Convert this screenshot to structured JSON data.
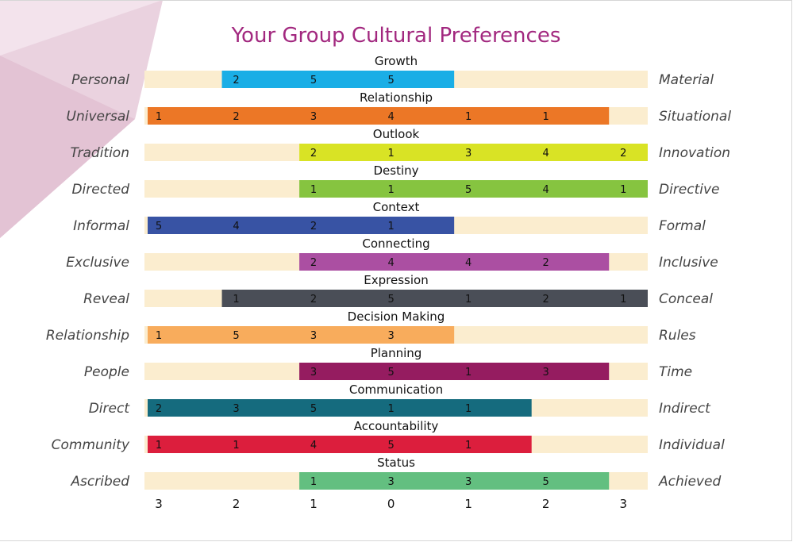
{
  "chart_data": {
    "type": "bar",
    "title": "Your Group Cultural Preferences",
    "x_ticks": [
      "3",
      "2",
      "1",
      "0",
      "1",
      "2",
      "3"
    ],
    "rows": [
      {
        "title": "Growth",
        "left": "Personal",
        "right": "Material",
        "color": "#1aaee6",
        "start": 1,
        "counts": [
          "2",
          "5",
          "5"
        ]
      },
      {
        "title": "Relationship",
        "left": "Universal",
        "right": "Situational",
        "color": "#ec7726",
        "start": 0,
        "counts": [
          "1",
          "2",
          "3",
          "4",
          "1",
          "1"
        ]
      },
      {
        "title": "Outlook",
        "left": "Tradition",
        "right": "Innovation",
        "color": "#d9e325",
        "start": 2,
        "counts": [
          "2",
          "1",
          "3",
          "4",
          "2"
        ]
      },
      {
        "title": "Destiny",
        "left": "Directed",
        "right": "Directive",
        "color": "#86c440",
        "start": 2,
        "counts": [
          "1",
          "1",
          "5",
          "4",
          "1"
        ]
      },
      {
        "title": "Context",
        "left": "Informal",
        "right": "Formal",
        "color": "#3853a4",
        "start": 0,
        "counts": [
          "5",
          "4",
          "2",
          "1"
        ]
      },
      {
        "title": "Connecting",
        "left": "Exclusive",
        "right": "Inclusive",
        "color": "#ab4fa2",
        "start": 2,
        "counts": [
          "2",
          "4",
          "4",
          "2"
        ]
      },
      {
        "title": "Expression",
        "left": "Reveal",
        "right": "Conceal",
        "color": "#4a4e57",
        "start": 1,
        "counts": [
          "1",
          "2",
          "5",
          "1",
          "2",
          "1"
        ]
      },
      {
        "title": "Decision Making",
        "left": "Relationship",
        "right": "Rules",
        "color": "#f8ac5c",
        "start": 0,
        "counts": [
          "1",
          "5",
          "3",
          "3"
        ]
      },
      {
        "title": "Planning",
        "left": "People",
        "right": "Time",
        "color": "#951c60",
        "start": 2,
        "counts": [
          "3",
          "5",
          "1",
          "3"
        ]
      },
      {
        "title": "Communication",
        "left": "Direct",
        "right": "Indirect",
        "color": "#156b7e",
        "start": 0,
        "counts": [
          "2",
          "3",
          "5",
          "1",
          "1"
        ]
      },
      {
        "title": "Accountability",
        "left": "Community",
        "right": "Individual",
        "color": "#dc1e3d",
        "start": 0,
        "counts": [
          "1",
          "1",
          "4",
          "5",
          "1"
        ]
      },
      {
        "title": "Status",
        "left": "Ascribed",
        "right": "Achieved",
        "color": "#63bf80",
        "start": 2,
        "counts": [
          "1",
          "3",
          "3",
          "5"
        ]
      }
    ],
    "track_color": "#fbedcf",
    "grid": false,
    "legend": "none"
  }
}
